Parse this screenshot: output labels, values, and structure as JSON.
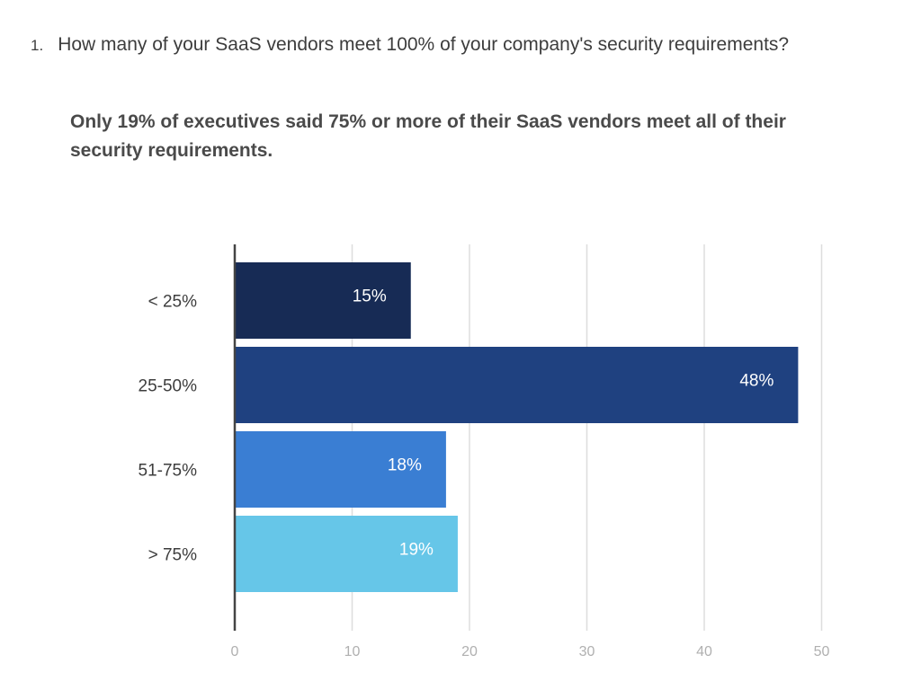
{
  "question": {
    "number": "1.",
    "text": "How many of your SaaS vendors meet 100% of your company's security requirements?"
  },
  "subtitle": "Only 19% of executives said 75% or more of their SaaS vendors meet all of their security requirements.",
  "chart_data": {
    "type": "bar",
    "orientation": "horizontal",
    "categories": [
      "< 25%",
      "25-50%",
      "51-75%",
      "> 75%"
    ],
    "values": [
      15,
      48,
      18,
      19
    ],
    "data_labels": [
      "15%",
      "48%",
      "18%",
      "19%"
    ],
    "colors": [
      "#172b55",
      "#1f4180",
      "#3a7ed3",
      "#66c6e8"
    ],
    "xlim": [
      0,
      50
    ],
    "xticks": [
      0,
      10,
      20,
      30,
      40,
      50
    ],
    "xtick_labels": [
      "0",
      "10",
      "20",
      "30",
      "40",
      "50"
    ],
    "grid": true,
    "legend": "none"
  }
}
